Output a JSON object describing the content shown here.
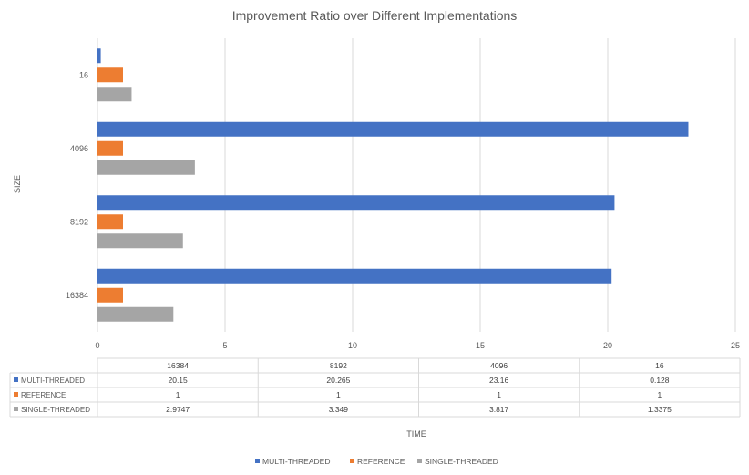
{
  "chart_data": {
    "type": "bar",
    "orientation": "horizontal",
    "title": "Improvement Ratio over Different Implementations",
    "xlabel": "TIME",
    "ylabel": "SIZE",
    "xlim": [
      0,
      25
    ],
    "xticks": [
      "0",
      "5",
      "10",
      "15",
      "20",
      "25"
    ],
    "categories": [
      "16",
      "4096",
      "8192",
      "16384"
    ],
    "table_columns": [
      "16384",
      "8192",
      "4096",
      "16"
    ],
    "series": [
      {
        "name": "MULTI-THREADED",
        "color": "#4472C4",
        "values": [
          0.128,
          23.16,
          20.265,
          20.15
        ],
        "table_values": [
          "20.15",
          "20.265",
          "23.16",
          "0.128"
        ]
      },
      {
        "name": "REFERENCE",
        "color": "#ED7D31",
        "values": [
          1,
          1,
          1,
          1
        ],
        "table_values": [
          "1",
          "1",
          "1",
          "1"
        ]
      },
      {
        "name": "SINGLE-THREADED",
        "color": "#A5A5A5",
        "values": [
          1.3375,
          3.817,
          3.349,
          2.9747
        ],
        "table_values": [
          "2.9747",
          "3.349",
          "3.817",
          "1.3375"
        ]
      }
    ],
    "grid": true,
    "data_table": true,
    "legend": "bottom"
  }
}
